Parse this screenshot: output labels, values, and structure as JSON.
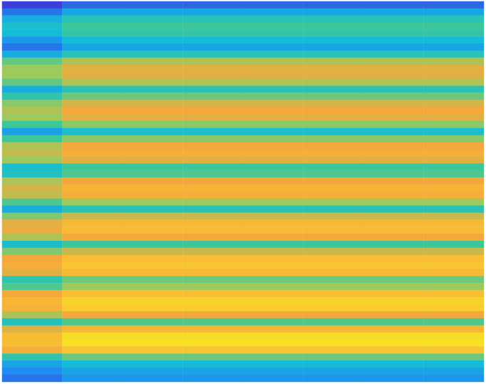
{
  "chart_data": {
    "type": "heatmap",
    "tick_labels": false,
    "grid": false,
    "color_range": [
      0.3,
      1
    ],
    "cells": [
      [
        0.3,
        0.35,
        0.35,
        0.35,
        0.35,
        0.35,
        0.35,
        0.35
      ],
      [
        0.37,
        0.45,
        0.45,
        0.45,
        0.45,
        0.45,
        0.45,
        0.45
      ],
      [
        0.47,
        0.55,
        0.55,
        0.55,
        0.55,
        0.55,
        0.55,
        0.55
      ],
      [
        0.52,
        0.6,
        0.6,
        0.6,
        0.6,
        0.6,
        0.6,
        0.6
      ],
      [
        0.5,
        0.58,
        0.58,
        0.58,
        0.58,
        0.58,
        0.58,
        0.58
      ],
      [
        0.42,
        0.5,
        0.5,
        0.5,
        0.5,
        0.5,
        0.5,
        0.5
      ],
      [
        0.37,
        0.45,
        0.45,
        0.45,
        0.45,
        0.45,
        0.45,
        0.45
      ],
      [
        0.47,
        0.55,
        0.55,
        0.55,
        0.55,
        0.55,
        0.55,
        0.55
      ],
      [
        0.64,
        0.72,
        0.72,
        0.72,
        0.72,
        0.72,
        0.72,
        0.72
      ],
      [
        0.7,
        0.78,
        0.78,
        0.78,
        0.78,
        0.78,
        0.78,
        0.78
      ],
      [
        0.7,
        0.78,
        0.78,
        0.78,
        0.78,
        0.78,
        0.78,
        0.78
      ],
      [
        0.64,
        0.72,
        0.72,
        0.72,
        0.72,
        0.72,
        0.72,
        0.72
      ],
      [
        0.47,
        0.55,
        0.55,
        0.55,
        0.55,
        0.55,
        0.55,
        0.55
      ],
      [
        0.57,
        0.65,
        0.65,
        0.65,
        0.65,
        0.65,
        0.65,
        0.65
      ],
      [
        0.68,
        0.76,
        0.76,
        0.76,
        0.76,
        0.76,
        0.76,
        0.76
      ],
      [
        0.72,
        0.8,
        0.8,
        0.8,
        0.8,
        0.8,
        0.8,
        0.8
      ],
      [
        0.7,
        0.78,
        0.78,
        0.78,
        0.78,
        0.78,
        0.78,
        0.78
      ],
      [
        0.6,
        0.68,
        0.68,
        0.68,
        0.68,
        0.68,
        0.68,
        0.68
      ],
      [
        0.44,
        0.52,
        0.52,
        0.52,
        0.52,
        0.52,
        0.52,
        0.52
      ],
      [
        0.6,
        0.68,
        0.68,
        0.68,
        0.68,
        0.68,
        0.68,
        0.68
      ],
      [
        0.72,
        0.8,
        0.8,
        0.8,
        0.8,
        0.8,
        0.8,
        0.8
      ],
      [
        0.74,
        0.82,
        0.82,
        0.82,
        0.82,
        0.82,
        0.82,
        0.82
      ],
      [
        0.7,
        0.78,
        0.78,
        0.78,
        0.78,
        0.78,
        0.78,
        0.78
      ],
      [
        0.52,
        0.6,
        0.6,
        0.6,
        0.6,
        0.6,
        0.6,
        0.6
      ],
      [
        0.54,
        0.62,
        0.62,
        0.62,
        0.62,
        0.62,
        0.62,
        0.62
      ],
      [
        0.72,
        0.8,
        0.8,
        0.8,
        0.8,
        0.8,
        0.8,
        0.8
      ],
      [
        0.76,
        0.84,
        0.84,
        0.84,
        0.84,
        0.84,
        0.84,
        0.84
      ],
      [
        0.74,
        0.82,
        0.82,
        0.82,
        0.82,
        0.82,
        0.82,
        0.82
      ],
      [
        0.62,
        0.7,
        0.7,
        0.7,
        0.7,
        0.7,
        0.7,
        0.7
      ],
      [
        0.47,
        0.55,
        0.55,
        0.55,
        0.55,
        0.55,
        0.55,
        0.55
      ],
      [
        0.67,
        0.75,
        0.75,
        0.75,
        0.75,
        0.75,
        0.75,
        0.75
      ],
      [
        0.78,
        0.86,
        0.86,
        0.86,
        0.86,
        0.86,
        0.86,
        0.86
      ],
      [
        0.79,
        0.87,
        0.87,
        0.87,
        0.87,
        0.87,
        0.87,
        0.87
      ],
      [
        0.72,
        0.8,
        0.8,
        0.8,
        0.8,
        0.8,
        0.8,
        0.8
      ],
      [
        0.52,
        0.6,
        0.6,
        0.6,
        0.6,
        0.6,
        0.6,
        0.6
      ],
      [
        0.67,
        0.75,
        0.75,
        0.75,
        0.75,
        0.75,
        0.75,
        0.75
      ],
      [
        0.8,
        0.88,
        0.88,
        0.88,
        0.88,
        0.88,
        0.88,
        0.88
      ],
      [
        0.82,
        0.9,
        0.9,
        0.9,
        0.9,
        0.9,
        0.9,
        0.9
      ],
      [
        0.78,
        0.86,
        0.86,
        0.86,
        0.86,
        0.86,
        0.86,
        0.86
      ],
      [
        0.57,
        0.65,
        0.65,
        0.65,
        0.65,
        0.65,
        0.65,
        0.65
      ],
      [
        0.62,
        0.7,
        0.7,
        0.7,
        0.7,
        0.7,
        0.7,
        0.7
      ],
      [
        0.8,
        0.88,
        0.88,
        0.88,
        0.88,
        0.88,
        0.88,
        0.88
      ],
      [
        0.85,
        0.93,
        0.93,
        0.93,
        0.93,
        0.93,
        0.93,
        0.93
      ],
      [
        0.84,
        0.92,
        0.92,
        0.92,
        0.92,
        0.92,
        0.92,
        0.92
      ],
      [
        0.72,
        0.8,
        0.8,
        0.8,
        0.8,
        0.8,
        0.8,
        0.8
      ],
      [
        0.54,
        0.62,
        0.62,
        0.62,
        0.62,
        0.62,
        0.62,
        0.62
      ],
      [
        0.77,
        0.85,
        0.85,
        0.85,
        0.85,
        0.85,
        0.85,
        0.85
      ],
      [
        0.87,
        0.95,
        0.95,
        0.95,
        0.95,
        0.95,
        0.95,
        0.95
      ],
      [
        0.88,
        0.96,
        0.96,
        0.96,
        0.96,
        0.96,
        0.96,
        0.96
      ],
      [
        0.82,
        0.9,
        0.9,
        0.9,
        0.9,
        0.9,
        0.9,
        0.9
      ],
      [
        0.57,
        0.65,
        0.65,
        0.65,
        0.65,
        0.65,
        0.65,
        0.65
      ],
      [
        0.45,
        0.5,
        0.5,
        0.5,
        0.5,
        0.5,
        0.5,
        0.5
      ],
      [
        0.4,
        0.45,
        0.45,
        0.45,
        0.45,
        0.45,
        0.45,
        0.45
      ],
      [
        0.37,
        0.42,
        0.42,
        0.42,
        0.42,
        0.42,
        0.42,
        0.42
      ]
    ]
  }
}
